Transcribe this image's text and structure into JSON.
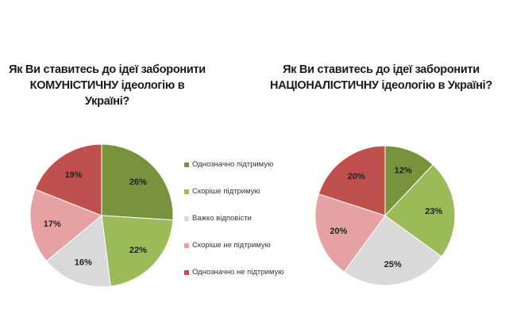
{
  "chart_data": [
    {
      "type": "pie",
      "title": "Як Ви ставитесь до ідеї заборонити КОМУНІСТИЧНУ ідеологію в Україні?",
      "categories": [
        "Однозначно підтримую",
        "Скоріше підтримую",
        "Важко відповісти",
        "Скоріше не підтримую",
        "Однозначно не підтримую"
      ],
      "values": [
        26,
        22,
        16,
        17,
        19
      ],
      "labels": [
        "26%",
        "22%",
        "16%",
        "17%",
        "19%"
      ]
    },
    {
      "type": "pie",
      "title": "Як Ви ставитесь до ідеї заборонити НАЦІОНАЛІСТИЧНУ ідеологію в Україні?",
      "categories": [
        "Однозначно підтримую",
        "Скоріше підтримую",
        "Важко відповісти",
        "Скоріше не підтримую",
        "Однозначно не підтримую"
      ],
      "values": [
        12,
        23,
        25,
        20,
        20
      ],
      "labels": [
        "12%",
        "23%",
        "25%",
        "20%",
        "20%"
      ]
    }
  ],
  "titles": {
    "left": [
      "Як Ви ставитесь до ідеї заборонити",
      "КОМУНІСТИЧНУ ідеологію в Україні?"
    ],
    "right": [
      "Як Ви ставитесь до ідеї заборонити",
      "НАЦІОНАЛІСТИЧНУ ідеологію в Україні?"
    ]
  },
  "legend": [
    "Однозначно підтримую",
    "Скоріше підтримую",
    "Важко відповісти",
    "Скоріше не підтримую",
    "Однозначно не підтримую"
  ],
  "colors": [
    "#77933c",
    "#9bbb59",
    "#d9d9d9",
    "#e6a1a3",
    "#c0504d"
  ]
}
